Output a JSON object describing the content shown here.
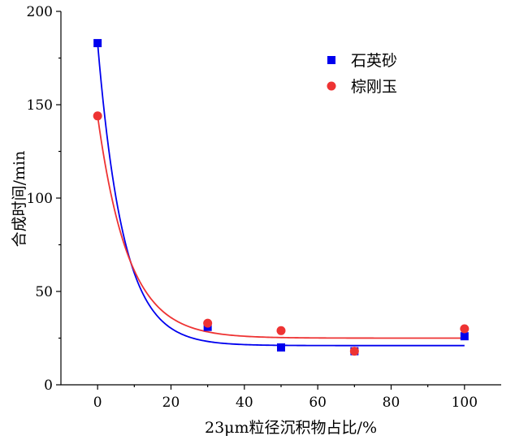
{
  "chart_data": {
    "type": "scatter",
    "xlabel": "23μm粒径沉积物占比/%",
    "ylabel": "合成时间/min",
    "xlim": [
      -10,
      110
    ],
    "ylim": [
      0,
      200
    ],
    "xticks": [
      0,
      20,
      40,
      60,
      80,
      100
    ],
    "yticks": [
      0,
      50,
      100,
      150,
      200
    ],
    "legend_position": "top-right",
    "grid": false,
    "series": [
      {
        "name": "石英砂",
        "marker": "square",
        "color": "#0000ee",
        "points": [
          [
            0,
            183
          ],
          [
            30,
            31
          ],
          [
            50,
            20
          ],
          [
            70,
            18
          ],
          [
            100,
            26
          ]
        ],
        "fit": {
          "type": "exponential-decay",
          "y0": 21,
          "A": 162,
          "t": 7.0
        }
      },
      {
        "name": "棕刚玉",
        "marker": "circle",
        "color": "#ee3333",
        "points": [
          [
            0,
            144
          ],
          [
            30,
            33
          ],
          [
            50,
            29
          ],
          [
            70,
            18
          ],
          [
            100,
            30
          ]
        ],
        "fit": {
          "type": "exponential-decay",
          "y0": 25,
          "A": 119,
          "t": 8.4
        }
      }
    ]
  }
}
